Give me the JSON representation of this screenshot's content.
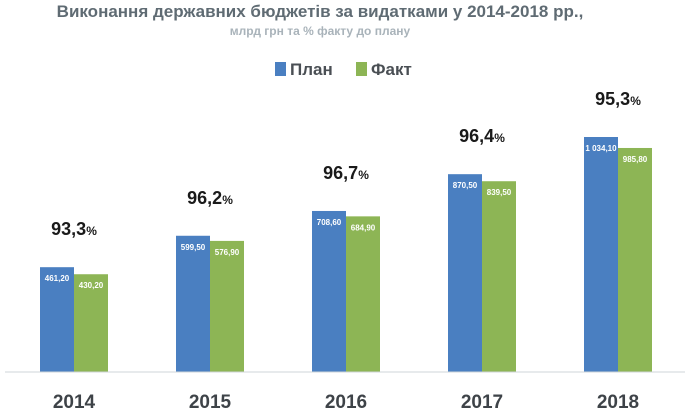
{
  "chart_data": {
    "type": "bar",
    "title": "Виконання державних бюджетів за видатками у 2014-2018 рр.,",
    "subtitle": "млрд грн та % факту до плану",
    "categories": [
      "2014",
      "2015",
      "2016",
      "2017",
      "2018"
    ],
    "series": [
      {
        "name": "План",
        "color": "#4a7fc1",
        "values": [
          461.2,
          599.5,
          708.6,
          870.5,
          1034.1
        ],
        "labels": [
          "461,20",
          "599,50",
          "708,60",
          "870,50",
          "1 034,10"
        ]
      },
      {
        "name": "Факт",
        "color": "#8db555",
        "values": [
          430.2,
          576.9,
          684.9,
          839.5,
          985.8
        ],
        "labels": [
          "430,20",
          "576,90",
          "684,90",
          "839,50",
          "985,80"
        ]
      }
    ],
    "execution_percent": [
      {
        "num": "93,3",
        "unit": "%"
      },
      {
        "num": "96,2",
        "unit": "%"
      },
      {
        "num": "96,7",
        "unit": "%"
      },
      {
        "num": "96,4",
        "unit": "%"
      },
      {
        "num": "95,3",
        "unit": "%"
      }
    ],
    "ylim": [
      0,
      1100
    ],
    "legend_position": "top-center",
    "grid": false
  }
}
